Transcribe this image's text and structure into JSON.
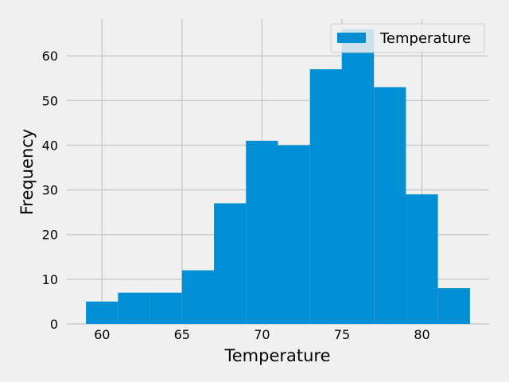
{
  "chart_data": {
    "type": "bar",
    "title": "",
    "xlabel": "Temperature",
    "ylabel": "Frequency",
    "bin_edges": [
      59,
      61,
      63,
      65,
      67,
      69,
      71,
      73,
      75,
      77,
      79,
      81,
      83
    ],
    "series": [
      {
        "name": "Temperature",
        "values": [
          5,
          7,
          7,
          12,
          27,
          41,
          40,
          57,
          66,
          53,
          29,
          8
        ]
      }
    ],
    "xlim": [
      57.8,
      84.2
    ],
    "ylim": [
      0,
      69.3
    ],
    "xticks": [
      60,
      65,
      70,
      75,
      80
    ],
    "yticks": [
      0,
      10,
      20,
      30,
      40,
      50,
      60
    ],
    "grid": true,
    "legend_position": "top-right",
    "colors": {
      "bar": "#008fd5",
      "background": "#f0f0f0",
      "grid": "#cbcbcb"
    }
  }
}
